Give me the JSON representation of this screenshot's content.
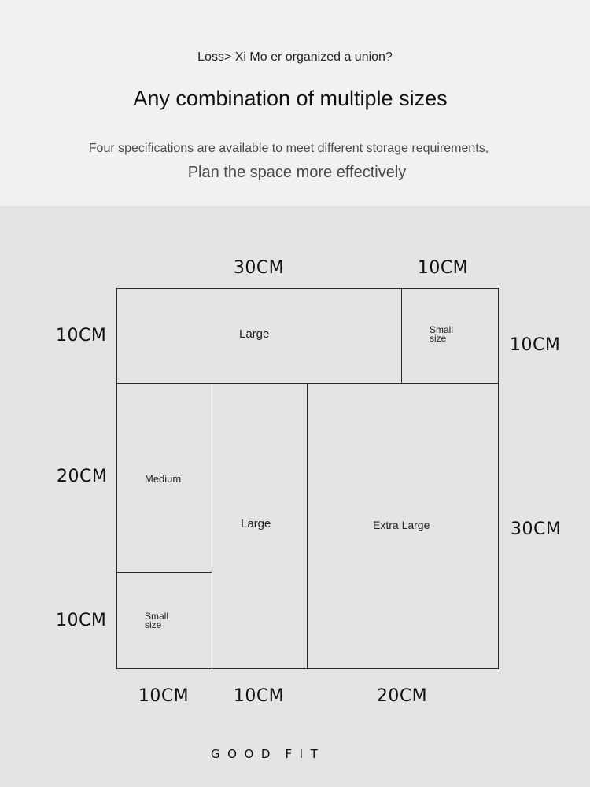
{
  "header": {
    "breadcrumb": "Loss> Xi Mo er organized a union?",
    "title": "Any combination of multiple sizes",
    "description_line1": "Four specifications are available to meet different storage requirements,",
    "description_line2": "Plan the space more effectively"
  },
  "dimensions": {
    "top_large": "30CM",
    "top_small": "10CM",
    "left_row1": "10CM",
    "left_row2": "20CM",
    "left_row3": "10CM",
    "right_row1": "10CM",
    "right_row2": "30CM",
    "bottom_col1": "10CM",
    "bottom_col2": "10CM",
    "bottom_col3": "20CM"
  },
  "boxes": {
    "large_top": {
      "label": "Large"
    },
    "small_top_right": {
      "label_line1": "Small",
      "label_line2": "size"
    },
    "medium": {
      "label": "Medium"
    },
    "small_bottom_left": {
      "label_line1": "Small",
      "label_line2": "size"
    },
    "large_mid": {
      "label": "Large"
    },
    "extra_large": {
      "label": "Extra Large"
    }
  },
  "footer": {
    "tagline": "G  O  O  D    F  I  T"
  },
  "colors": {
    "header_bg": "#f1f1f1",
    "main_bg": "#e4e4e4",
    "border": "#2a2a2a"
  }
}
